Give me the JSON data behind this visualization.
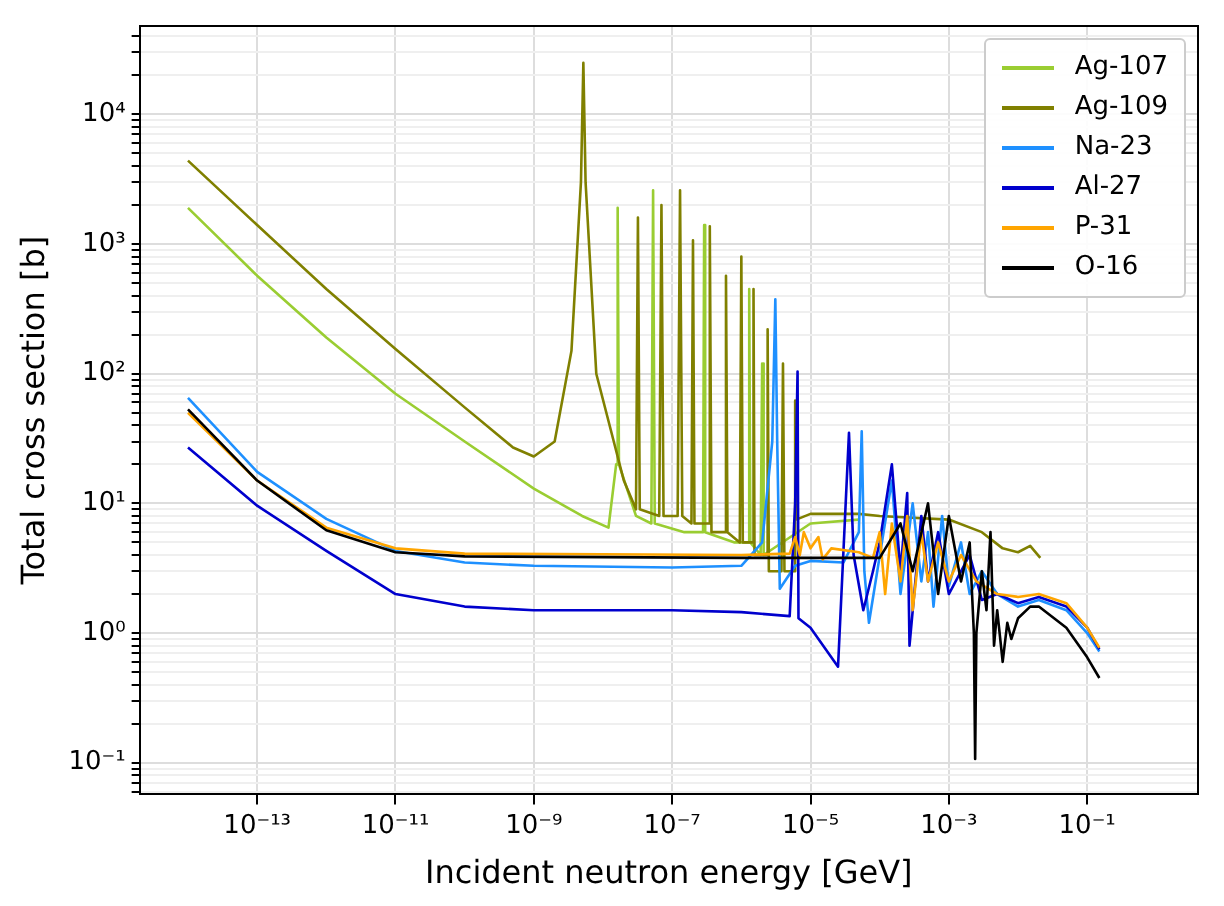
{
  "chart_data": {
    "type": "line",
    "xlabel": "Incident neutron energy [GeV]",
    "ylabel": "Total cross section [b]",
    "log": "xy",
    "grid": true,
    "legend": "top right",
    "marker": "none",
    "line_style": "solid",
    "xlim": [
      2e-15,
      4
    ],
    "ylim": [
      0.057,
      48000
    ],
    "xticks": [
      {
        "value": 1e-13,
        "label": "10⁻¹³"
      },
      {
        "value": 1e-11,
        "label": "10⁻¹¹"
      },
      {
        "value": 1e-09,
        "label": "10⁻⁹"
      },
      {
        "value": 1e-07,
        "label": "10⁻⁷"
      },
      {
        "value": 1e-05,
        "label": "10⁻⁵"
      },
      {
        "value": 0.001,
        "label": "10⁻³"
      },
      {
        "value": 0.1,
        "label": "10⁻¹"
      }
    ],
    "yticks": [
      {
        "value": 0.06,
        "label": null
      },
      {
        "value": 0.07,
        "label": null
      },
      {
        "value": 0.08,
        "label": null
      },
      {
        "value": 0.09,
        "label": null
      },
      {
        "value": 0.1,
        "label": "10⁻¹"
      },
      {
        "value": 0.2,
        "label": null
      },
      {
        "value": 0.3,
        "label": null
      },
      {
        "value": 0.4,
        "label": null
      },
      {
        "value": 0.5,
        "label": null
      },
      {
        "value": 0.6,
        "label": null
      },
      {
        "value": 0.7,
        "label": null
      },
      {
        "value": 0.8,
        "label": null
      },
      {
        "value": 0.9,
        "label": null
      },
      {
        "value": 1,
        "label": "10⁰"
      },
      {
        "value": 2,
        "label": null
      },
      {
        "value": 3,
        "label": null
      },
      {
        "value": 4,
        "label": null
      },
      {
        "value": 5,
        "label": null
      },
      {
        "value": 6,
        "label": null
      },
      {
        "value": 7,
        "label": null
      },
      {
        "value": 8,
        "label": null
      },
      {
        "value": 9,
        "label": null
      },
      {
        "value": 10,
        "label": "10¹"
      },
      {
        "value": 20,
        "label": null
      },
      {
        "value": 30,
        "label": null
      },
      {
        "value": 40,
        "label": null
      },
      {
        "value": 50,
        "label": null
      },
      {
        "value": 60,
        "label": null
      },
      {
        "value": 70,
        "label": null
      },
      {
        "value": 80,
        "label": null
      },
      {
        "value": 90,
        "label": null
      },
      {
        "value": 100,
        "label": "10²"
      },
      {
        "value": 200,
        "label": null
      },
      {
        "value": 300,
        "label": null
      },
      {
        "value": 400,
        "label": null
      },
      {
        "value": 500,
        "label": null
      },
      {
        "value": 600,
        "label": null
      },
      {
        "value": 700,
        "label": null
      },
      {
        "value": 800,
        "label": null
      },
      {
        "value": 900,
        "label": null
      },
      {
        "value": 1000,
        "label": "10³"
      },
      {
        "value": 2000,
        "label": null
      },
      {
        "value": 3000,
        "label": null
      },
      {
        "value": 4000,
        "label": null
      },
      {
        "value": 5000,
        "label": null
      },
      {
        "value": 6000,
        "label": null
      },
      {
        "value": 7000,
        "label": null
      },
      {
        "value": 8000,
        "label": null
      },
      {
        "value": 9000,
        "label": null
      },
      {
        "value": 10000,
        "label": "10⁴"
      },
      {
        "value": 20000,
        "label": null
      },
      {
        "value": 30000,
        "label": null
      },
      {
        "value": 40000,
        "label": null
      }
    ],
    "series": [
      {
        "name": "Ag-107",
        "color": "#9acd32",
        "x": [
          1e-14,
          1e-13,
          1e-12,
          1e-11,
          1e-10,
          1e-09,
          5e-09,
          1.2e-08,
          1.55e-08,
          1.63e-08,
          1.7e-08,
          3e-08,
          5e-08,
          5.3e-08,
          5.6e-08,
          1.5e-07,
          2.8e-07,
          2.9e-07,
          3e-07,
          8e-07,
          1.25e-06,
          1.3e-06,
          1.35e-06,
          1.9e-06,
          2e-06,
          2.1e-06,
          1e-05,
          5e-05
        ],
        "values": [
          1900,
          570,
          190,
          70,
          30,
          13,
          8,
          6.5,
          20,
          1900,
          20,
          8,
          7,
          2600,
          7,
          6,
          6,
          1400,
          6,
          5,
          5,
          450,
          5,
          4,
          120,
          4,
          7,
          7.5
        ]
      },
      {
        "name": "Ag-109",
        "color": "#808000",
        "x": [
          1e-14,
          1e-13,
          1e-12,
          1e-11,
          1e-10,
          5e-10,
          1e-09,
          2e-09,
          3.5e-09,
          4.8e-09,
          5.2e-09,
          5.6e-09,
          8e-09,
          2e-08,
          3e-08,
          3.2e-08,
          3.4e-08,
          6.5e-08,
          7e-08,
          7.5e-08,
          1.2e-07,
          1.3e-07,
          1.4e-07,
          1.9e-07,
          2e-07,
          2.1e-07,
          3.3e-07,
          3.5e-07,
          3.7e-07,
          5.7e-07,
          6e-07,
          6.3e-07,
          9.5e-07,
          1e-06,
          1.05e-06,
          1.45e-06,
          1.5e-06,
          1.55e-06,
          2.3e-06,
          2.4e-06,
          2.5e-06,
          3.8e-06,
          4e-06,
          4.2e-06,
          5.8e-06,
          6e-06,
          6.2e-06,
          1e-05,
          5e-05,
          0.0001,
          0.001,
          0.003,
          0.006,
          0.01,
          0.015,
          0.021
        ],
        "values": [
          4400,
          1400,
          450,
          155,
          55,
          27,
          23,
          30,
          150,
          3000,
          25000,
          3000,
          100,
          15,
          9,
          1600,
          9,
          8,
          2000,
          8,
          8,
          2600,
          8,
          7,
          1070,
          7,
          7,
          1370,
          6,
          6,
          570,
          6,
          5,
          800,
          5,
          5,
          450,
          4,
          4,
          220,
          3,
          3,
          120,
          3,
          3,
          62,
          7.5,
          8.3,
          8.3,
          8,
          7.5,
          6,
          4.5,
          4.2,
          4.7,
          3.8
        ]
      },
      {
        "name": "Na-23",
        "color": "#1e90ff",
        "x": [
          1e-14,
          1e-13,
          1e-12,
          1e-11,
          1e-10,
          1e-09,
          1e-07,
          1e-06,
          2e-06,
          2.8e-06,
          3.1e-06,
          3.3e-06,
          3.6e-06,
          6e-06,
          1e-05,
          3e-05,
          5e-05,
          5.5e-05,
          6e-05,
          7e-05,
          0.00015,
          0.0002,
          0.0003,
          0.0004,
          0.0005,
          0.0006,
          0.0008,
          0.001,
          0.0015,
          0.002,
          0.003,
          0.005,
          0.01,
          0.02,
          0.05,
          0.1,
          0.15
        ],
        "values": [
          65,
          17.5,
          7.6,
          4.3,
          3.5,
          3.3,
          3.2,
          3.3,
          5,
          30,
          375,
          30,
          2.2,
          3.3,
          3.6,
          3.5,
          6,
          36,
          3,
          1.2,
          15,
          2,
          10,
          2.5,
          6,
          1.6,
          8,
          2.3,
          5,
          2,
          3,
          2,
          1.6,
          1.8,
          1.5,
          1,
          0.72
        ]
      },
      {
        "name": "Al-27",
        "color": "#0000cd",
        "x": [
          1e-14,
          1e-13,
          1e-12,
          1e-11,
          1e-10,
          1e-09,
          1e-07,
          1e-06,
          5e-06,
          6e-06,
          6.5e-06,
          6.7e-06,
          1e-05,
          2.5e-05,
          3.6e-05,
          4.2e-05,
          5.8e-05,
          8e-05,
          0.0001,
          0.00015,
          0.0002,
          0.00025,
          0.00027,
          0.0004,
          0.0005,
          0.0007,
          0.001,
          0.002,
          0.003,
          0.005,
          0.01,
          0.02,
          0.05,
          0.1,
          0.15
        ],
        "values": [
          27,
          9.6,
          4.3,
          2,
          1.6,
          1.5,
          1.5,
          1.45,
          1.35,
          10,
          104,
          1.3,
          1.1,
          0.55,
          35,
          4,
          1.5,
          3,
          5,
          20,
          3,
          12,
          0.8,
          8,
          2.5,
          6,
          2,
          4,
          1.8,
          2,
          1.7,
          1.9,
          1.6,
          1.1,
          0.75
        ]
      },
      {
        "name": "P-31",
        "color": "#ffa500",
        "x": [
          1e-14,
          1e-13,
          1e-12,
          1e-11,
          1e-10,
          1e-06,
          5e-06,
          6e-06,
          7e-06,
          8e-06,
          1e-05,
          1.3e-05,
          1.5e-05,
          2e-05,
          5e-05,
          8e-05,
          0.0001,
          0.00012,
          0.00015,
          0.0002,
          0.00025,
          0.0003,
          0.0004,
          0.0005,
          0.0007,
          0.001,
          0.0015,
          0.0025,
          0.005,
          0.01,
          0.02,
          0.05,
          0.1,
          0.15
        ],
        "values": [
          50,
          15,
          6.5,
          4.5,
          4.1,
          4,
          4.1,
          5.5,
          4,
          6,
          4.5,
          5.5,
          3.7,
          4.5,
          4.2,
          3.8,
          6,
          2,
          7,
          2.5,
          8,
          1.5,
          6,
          2.5,
          5,
          2.5,
          4,
          2.5,
          2,
          1.9,
          2,
          1.7,
          1.1,
          0.77
        ]
      },
      {
        "name": "O-16",
        "color": "#000000",
        "x": [
          1e-14,
          1e-13,
          1e-12,
          1e-11,
          1e-10,
          1e-06,
          0.0001,
          0.0002,
          0.0003,
          0.0005,
          0.0007,
          0.001,
          0.0015,
          0.002,
          0.0023,
          0.0024,
          0.0025,
          0.003,
          0.0035,
          0.004,
          0.0045,
          0.005,
          0.006,
          0.007,
          0.008,
          0.01,
          0.015,
          0.02,
          0.05,
          0.1,
          0.15
        ],
        "values": [
          53,
          15,
          6.2,
          4.2,
          3.9,
          3.8,
          3.8,
          7,
          3,
          10,
          2,
          8,
          2.5,
          5,
          1,
          0.107,
          1,
          3,
          1.5,
          6,
          0.8,
          1.5,
          0.6,
          1.2,
          0.9,
          1.3,
          1.6,
          1.6,
          1.1,
          0.65,
          0.45
        ]
      }
    ]
  }
}
